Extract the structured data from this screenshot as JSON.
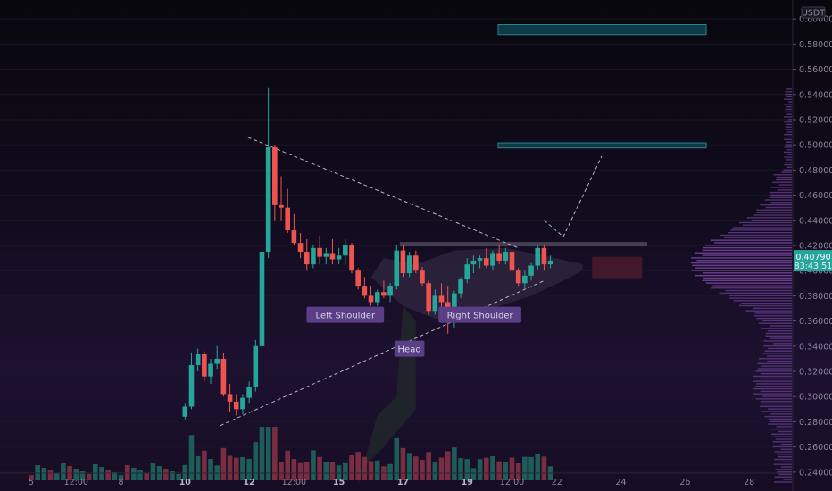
{
  "chart_data": {
    "type": "candlestick",
    "quote_currency": "USDT",
    "last_price": "0.40790",
    "last_price_countdown": "83:43:51",
    "y_range": [
      0.225,
      0.615
    ],
    "y_ticks": [
      "0.24000",
      "0.26000",
      "0.28000",
      "0.30000",
      "0.32000",
      "0.34000",
      "0.36000",
      "0.38000",
      "0.40000",
      "0.42000",
      "0.44000",
      "0.46000",
      "0.48000",
      "0.50000",
      "0.52000",
      "0.54000",
      "0.56000",
      "0.58000",
      "0.60000"
    ],
    "x_ticks": [
      {
        "label": "5",
        "bold": false,
        "i": 0
      },
      {
        "label": "12:00",
        "bold": false,
        "i": 7
      },
      {
        "label": "8",
        "bold": false,
        "i": 14
      },
      {
        "label": "10",
        "bold": true,
        "i": 24
      },
      {
        "label": "12",
        "bold": true,
        "i": 34
      },
      {
        "label": "12:00",
        "bold": false,
        "i": 41
      },
      {
        "label": "15",
        "bold": true,
        "i": 48
      },
      {
        "label": "17",
        "bold": true,
        "i": 58
      },
      {
        "label": "19",
        "bold": true,
        "i": 68
      },
      {
        "label": "12:00",
        "bold": false,
        "i": 75
      },
      {
        "label": "22",
        "bold": false,
        "i": 82
      },
      {
        "label": "24",
        "bold": false,
        "i": 92
      },
      {
        "label": "26",
        "bold": false,
        "i": 102
      },
      {
        "label": "28",
        "bold": false,
        "i": 112
      }
    ],
    "candles": [
      [
        0.284,
        0.295,
        0.282,
        0.292
      ],
      [
        0.292,
        0.335,
        0.29,
        0.325
      ],
      [
        0.325,
        0.338,
        0.32,
        0.334
      ],
      [
        0.334,
        0.336,
        0.312,
        0.316
      ],
      [
        0.316,
        0.33,
        0.31,
        0.326
      ],
      [
        0.326,
        0.34,
        0.322,
        0.33
      ],
      [
        0.33,
        0.335,
        0.3,
        0.302
      ],
      [
        0.302,
        0.31,
        0.288,
        0.296
      ],
      [
        0.296,
        0.302,
        0.285,
        0.29
      ],
      [
        0.29,
        0.302,
        0.286,
        0.299
      ],
      [
        0.299,
        0.312,
        0.295,
        0.308
      ],
      [
        0.308,
        0.345,
        0.304,
        0.34
      ],
      [
        0.34,
        0.42,
        0.338,
        0.415
      ],
      [
        0.415,
        0.545,
        0.41,
        0.498
      ],
      [
        0.498,
        0.5,
        0.44,
        0.452
      ],
      [
        0.452,
        0.475,
        0.44,
        0.45
      ],
      [
        0.45,
        0.465,
        0.43,
        0.432
      ],
      [
        0.432,
        0.445,
        0.42,
        0.422
      ],
      [
        0.422,
        0.43,
        0.41,
        0.415
      ],
      [
        0.415,
        0.425,
        0.4,
        0.405
      ],
      [
        0.405,
        0.42,
        0.402,
        0.418
      ],
      [
        0.418,
        0.428,
        0.405,
        0.411
      ],
      [
        0.411,
        0.418,
        0.405,
        0.414
      ],
      [
        0.414,
        0.425,
        0.405,
        0.409
      ],
      [
        0.409,
        0.418,
        0.405,
        0.412
      ],
      [
        0.412,
        0.425,
        0.405,
        0.42
      ],
      [
        0.42,
        0.422,
        0.398,
        0.4
      ],
      [
        0.4,
        0.402,
        0.385,
        0.388
      ],
      [
        0.388,
        0.395,
        0.378,
        0.38
      ],
      [
        0.38,
        0.388,
        0.372,
        0.375
      ],
      [
        0.375,
        0.385,
        0.372,
        0.383
      ],
      [
        0.383,
        0.392,
        0.378,
        0.38
      ],
      [
        0.38,
        0.39,
        0.375,
        0.388
      ],
      [
        0.388,
        0.42,
        0.385,
        0.416
      ],
      [
        0.416,
        0.42,
        0.395,
        0.398
      ],
      [
        0.398,
        0.415,
        0.395,
        0.412
      ],
      [
        0.412,
        0.416,
        0.398,
        0.4
      ],
      [
        0.4,
        0.403,
        0.388,
        0.39
      ],
      [
        0.39,
        0.392,
        0.365,
        0.368
      ],
      [
        0.368,
        0.385,
        0.365,
        0.38
      ],
      [
        0.38,
        0.39,
        0.37,
        0.375
      ],
      [
        0.375,
        0.388,
        0.35,
        0.36
      ],
      [
        0.36,
        0.384,
        0.355,
        0.382
      ],
      [
        0.382,
        0.395,
        0.378,
        0.393
      ],
      [
        0.393,
        0.41,
        0.39,
        0.405
      ],
      [
        0.405,
        0.412,
        0.398,
        0.408
      ],
      [
        0.408,
        0.412,
        0.402,
        0.41
      ],
      [
        0.41,
        0.418,
        0.402,
        0.404
      ],
      [
        0.404,
        0.416,
        0.4,
        0.414
      ],
      [
        0.414,
        0.42,
        0.405,
        0.408
      ],
      [
        0.408,
        0.418,
        0.405,
        0.415
      ],
      [
        0.415,
        0.418,
        0.398,
        0.4
      ],
      [
        0.4,
        0.402,
        0.388,
        0.39
      ],
      [
        0.39,
        0.4,
        0.385,
        0.396
      ],
      [
        0.396,
        0.406,
        0.392,
        0.404
      ],
      [
        0.404,
        0.42,
        0.4,
        0.418
      ],
      [
        0.418,
        0.42,
        0.4,
        0.405
      ],
      [
        0.405,
        0.412,
        0.402,
        0.408
      ]
    ],
    "annotations": [
      {
        "text": "Left Shoulder",
        "x_index": 49,
        "price": 0.365
      },
      {
        "text": "Head",
        "x_index": 59,
        "price": 0.338
      },
      {
        "text": "Right Shoulder",
        "x_index": 70,
        "price": 0.365
      }
    ],
    "resistance_level": 0.421,
    "target_zones": [
      [
        0.5015,
        0.4975
      ],
      [
        0.5955,
        0.5875
      ]
    ],
    "trend_lines": {
      "upper": [
        [
          33.8,
          0.506
        ],
        [
          76,
          0.418
        ]
      ],
      "lower": [
        [
          29.5,
          0.277
        ],
        [
          80,
          0.392
        ]
      ],
      "projection": [
        [
          80,
          0.44
        ],
        [
          83,
          0.427
        ],
        [
          89,
          0.491
        ]
      ]
    },
    "volume_profile_poc": 0.405,
    "colors": {
      "up": "#26a69a",
      "down": "#ef5350",
      "annotation_bg": "#5b3f86",
      "zone_fill": "#0e3a48",
      "zone_stroke": "#2f7f92"
    }
  }
}
